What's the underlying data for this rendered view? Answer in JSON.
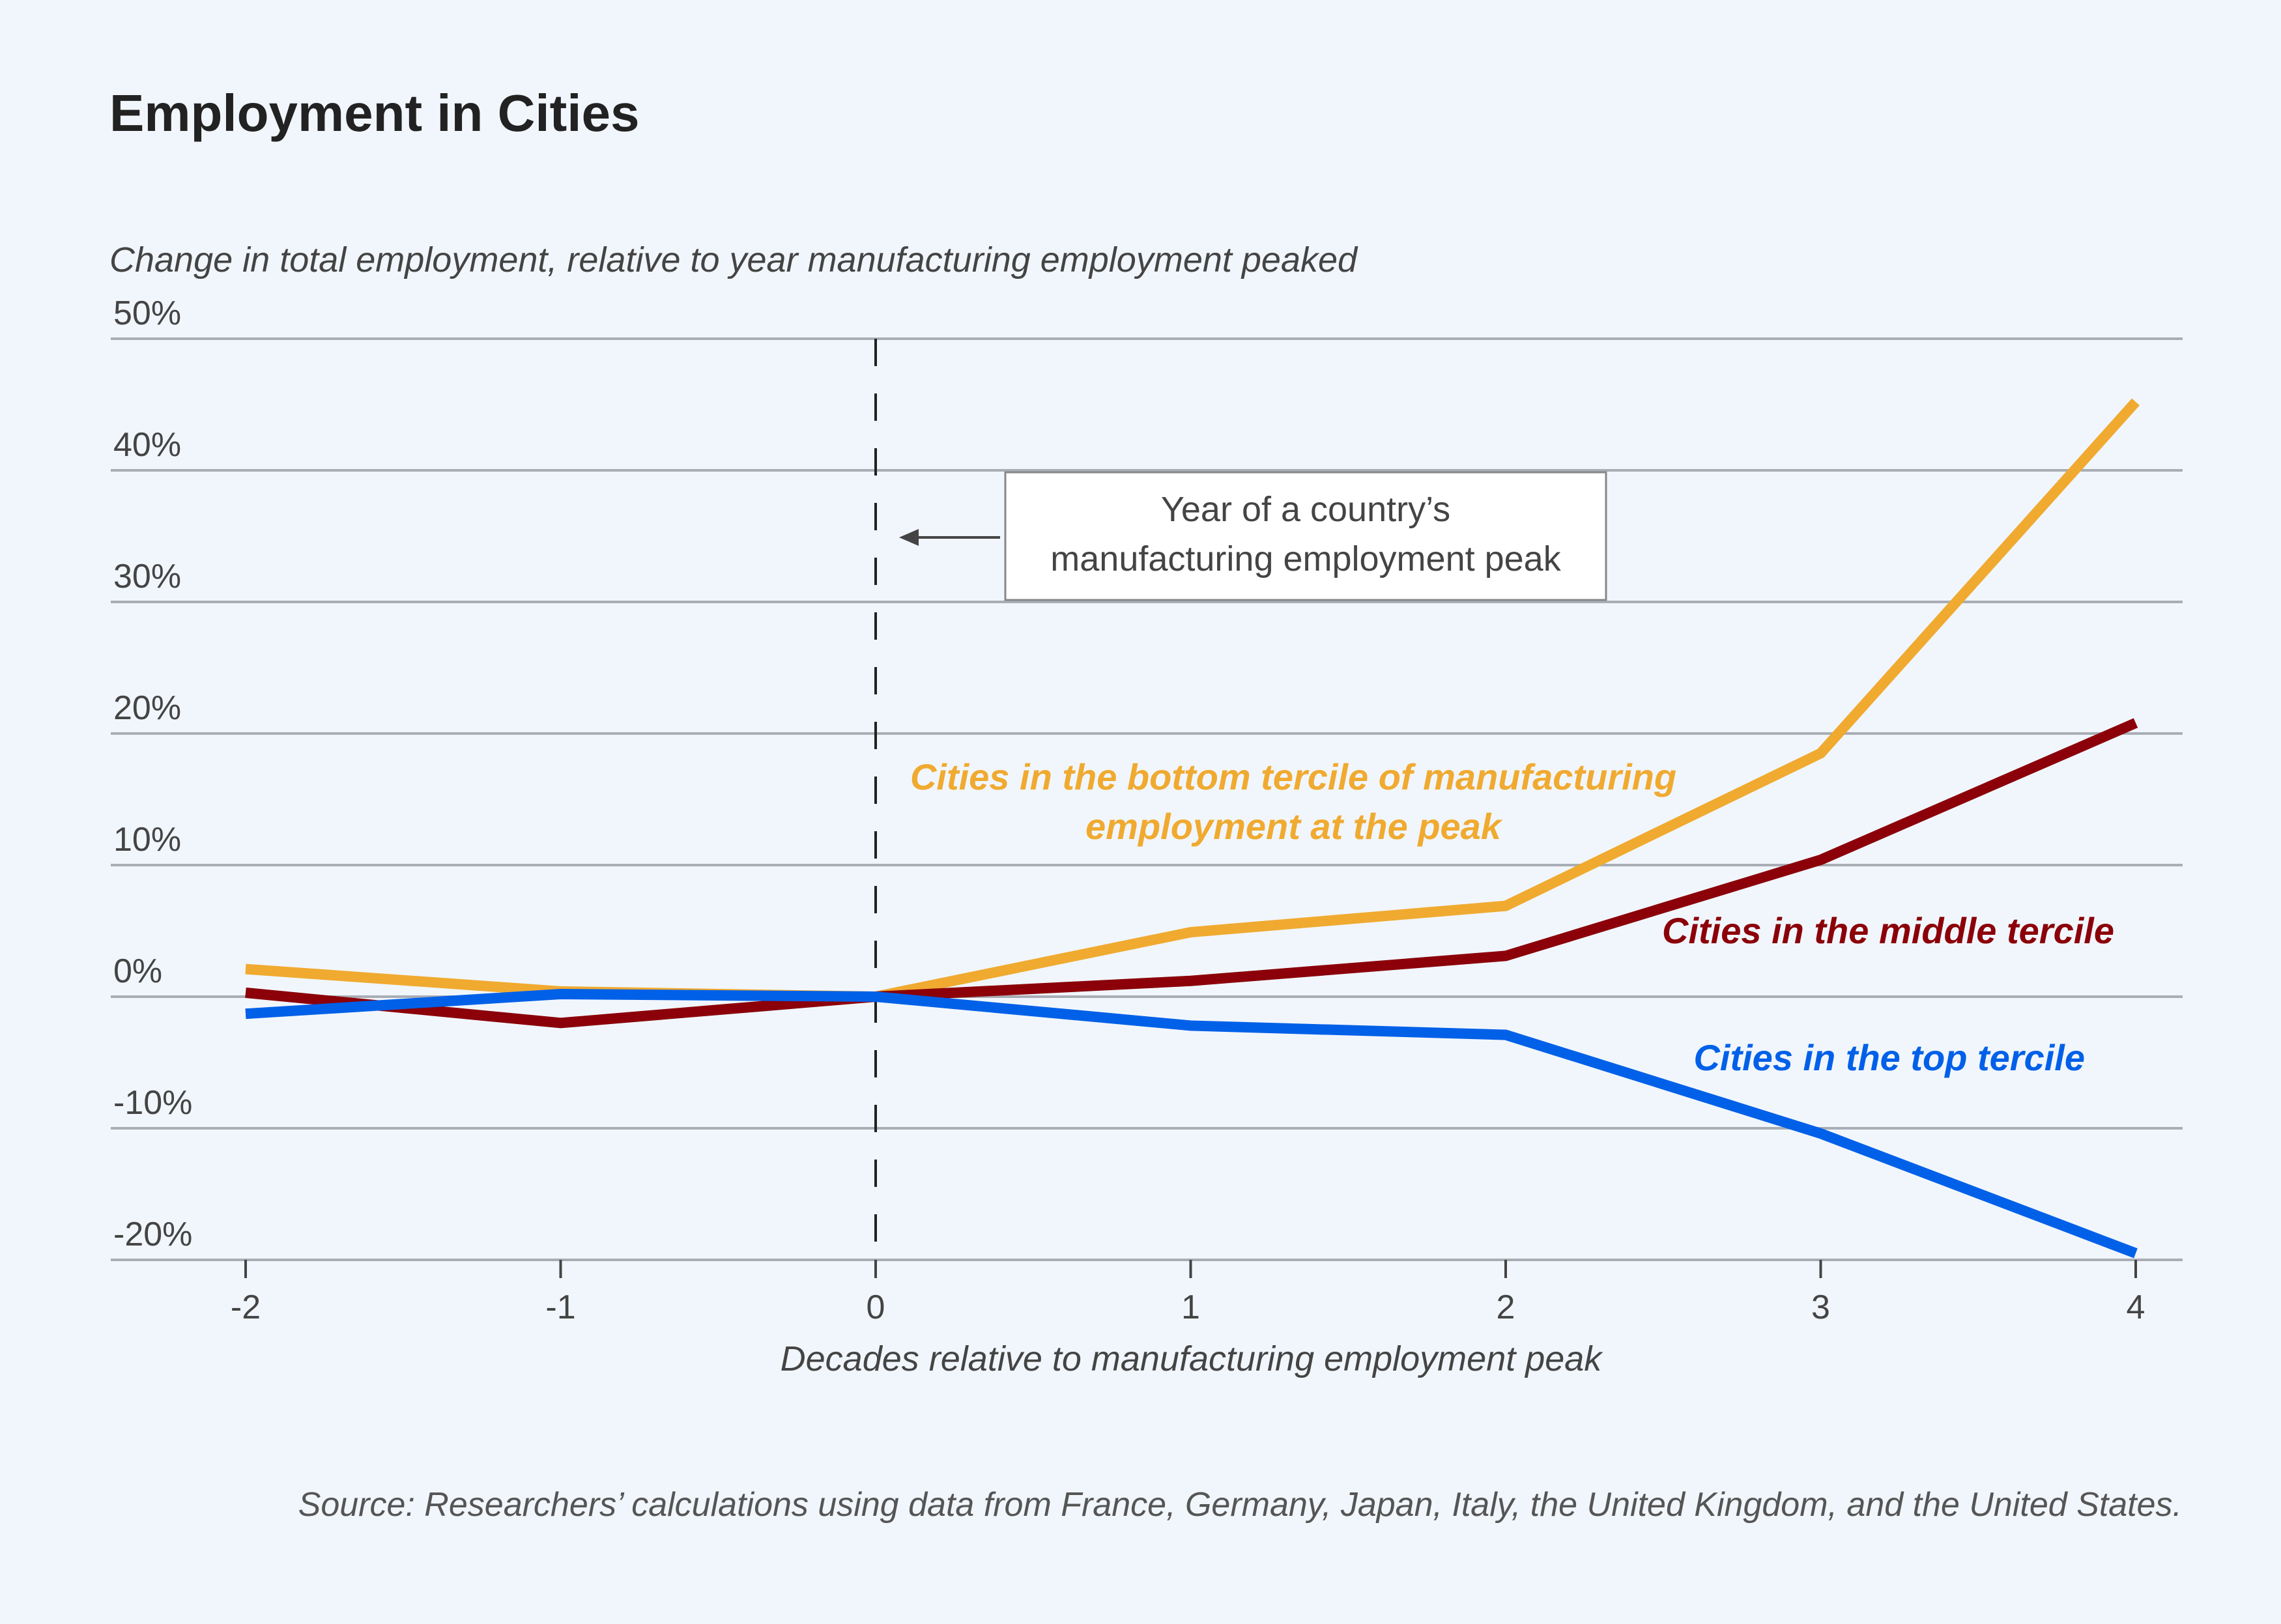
{
  "chart_data": {
    "type": "line",
    "title": "Employment in Cities",
    "ylabel": "Change in total employment, relative to year manufacturing employment peaked",
    "xlabel": "Decades relative to manufacturing employment peak",
    "x": [
      -2,
      -1,
      0,
      1,
      2,
      3,
      4
    ],
    "xticks": [
      "-2",
      "-1",
      "0",
      "1",
      "2",
      "3",
      "4"
    ],
    "ylim": [
      -20,
      50
    ],
    "yticks": [
      50,
      40,
      30,
      20,
      10,
      0,
      -10,
      -20
    ],
    "ytick_labels": [
      "50%",
      "40%",
      "30%",
      "20%",
      "10%",
      "0%",
      "-10%",
      "-20%"
    ],
    "grid": "horizontal",
    "series": [
      {
        "name": "Cities in the bottom tercile of manufacturing employment at the peak",
        "label_lines": [
          "Cities in the bottom tercile of manufacturing",
          "employment at the peak"
        ],
        "color": "#F0AA30",
        "values": [
          2.1,
          0.4,
          0,
          4.9,
          6.9,
          18.5,
          45.2
        ]
      },
      {
        "name": "Cities in the middle tercile",
        "label_lines": [
          "Cities in the middle tercile"
        ],
        "color": "#8B0009",
        "values": [
          0.3,
          -2.0,
          0,
          1.2,
          3.1,
          10.4,
          20.8
        ]
      },
      {
        "name": "Cities in the top tercile",
        "label_lines": [
          "Cities in the top tercile"
        ],
        "color": "#0060E8",
        "values": [
          -1.3,
          0.2,
          0,
          -2.2,
          -2.9,
          -10.4,
          -19.5
        ]
      }
    ],
    "annotation": {
      "lines": [
        "Year of a country’s",
        "manufacturing employment peak"
      ],
      "x": 0
    },
    "source": "Source: Researchers’ calculations using data from France, Germany, Japan, Italy, the United Kingdom, and the United States."
  }
}
